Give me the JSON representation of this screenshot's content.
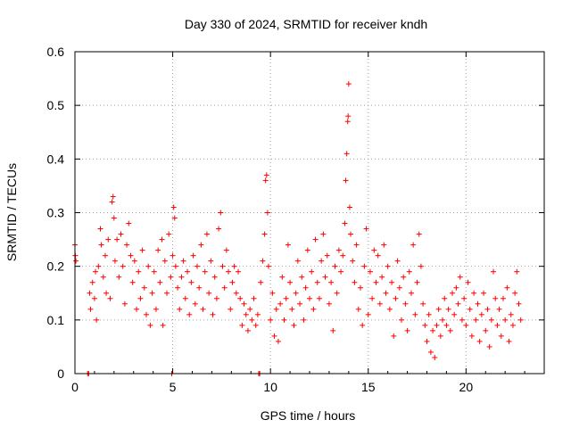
{
  "chart_data": {
    "type": "scatter",
    "title": "Day 330 of 2024, SRMTID for receiver kndh",
    "xlabel": "GPS time / hours",
    "ylabel": "SRMTID / TECUs",
    "xlim": [
      0,
      24
    ],
    "ylim": [
      0,
      0.6
    ],
    "grid": true,
    "marker": "+",
    "color": "#ff0000",
    "x_ticks": [
      {
        "v": 0,
        "label": "0"
      },
      {
        "v": 5,
        "label": "5"
      },
      {
        "v": 10,
        "label": "10"
      },
      {
        "v": 15,
        "label": "15"
      },
      {
        "v": 20,
        "label": "20"
      }
    ],
    "y_ticks": [
      {
        "v": 0,
        "label": "0"
      },
      {
        "v": 0.1,
        "label": "0.1"
      },
      {
        "v": 0.2,
        "label": "0.2"
      },
      {
        "v": 0.3,
        "label": "0.3"
      },
      {
        "v": 0.4,
        "label": "0.4"
      },
      {
        "v": 0.5,
        "label": "0.5"
      },
      {
        "v": 0.6,
        "label": "0.6"
      }
    ],
    "series": [
      {
        "name": "SRMTID",
        "points": [
          [
            0.0,
            0.24
          ],
          [
            0.02,
            0.22
          ],
          [
            0.05,
            0.21
          ],
          [
            0.65,
            0.0
          ],
          [
            0.7,
            0.0
          ],
          [
            0.75,
            0.15
          ],
          [
            0.8,
            0.12
          ],
          [
            0.9,
            0.17
          ],
          [
            1.0,
            0.14
          ],
          [
            1.05,
            0.19
          ],
          [
            1.1,
            0.1
          ],
          [
            1.2,
            0.2
          ],
          [
            1.3,
            0.27
          ],
          [
            1.35,
            0.24
          ],
          [
            1.45,
            0.18
          ],
          [
            1.55,
            0.22
          ],
          [
            1.6,
            0.15
          ],
          [
            1.7,
            0.25
          ],
          [
            1.8,
            0.14
          ],
          [
            1.9,
            0.32
          ],
          [
            1.95,
            0.33
          ],
          [
            2.0,
            0.29
          ],
          [
            2.05,
            0.21
          ],
          [
            2.15,
            0.25
          ],
          [
            2.25,
            0.18
          ],
          [
            2.35,
            0.26
          ],
          [
            2.45,
            0.2
          ],
          [
            2.55,
            0.13
          ],
          [
            2.65,
            0.24
          ],
          [
            2.75,
            0.28
          ],
          [
            2.85,
            0.22
          ],
          [
            2.95,
            0.17
          ],
          [
            3.05,
            0.21
          ],
          [
            3.15,
            0.12
          ],
          [
            3.25,
            0.19
          ],
          [
            3.35,
            0.14
          ],
          [
            3.45,
            0.23
          ],
          [
            3.55,
            0.16
          ],
          [
            3.65,
            0.11
          ],
          [
            3.75,
            0.2
          ],
          [
            3.85,
            0.09
          ],
          [
            3.95,
            0.15
          ],
          [
            4.05,
            0.19
          ],
          [
            4.15,
            0.12
          ],
          [
            4.25,
            0.23
          ],
          [
            4.35,
            0.17
          ],
          [
            4.45,
            0.25
          ],
          [
            4.5,
            0.09
          ],
          [
            4.6,
            0.21
          ],
          [
            4.7,
            0.15
          ],
          [
            4.8,
            0.26
          ],
          [
            4.9,
            0.18
          ],
          [
            4.95,
            0.0
          ],
          [
            5.0,
            0.22
          ],
          [
            5.05,
            0.31
          ],
          [
            5.1,
            0.29
          ],
          [
            5.15,
            0.2
          ],
          [
            5.25,
            0.16
          ],
          [
            5.35,
            0.12
          ],
          [
            5.45,
            0.18
          ],
          [
            5.55,
            0.21
          ],
          [
            5.65,
            0.14
          ],
          [
            5.75,
            0.19
          ],
          [
            5.85,
            0.11
          ],
          [
            5.95,
            0.17
          ],
          [
            6.05,
            0.22
          ],
          [
            6.15,
            0.13
          ],
          [
            6.25,
            0.2
          ],
          [
            6.35,
            0.16
          ],
          [
            6.45,
            0.24
          ],
          [
            6.55,
            0.12
          ],
          [
            6.65,
            0.19
          ],
          [
            6.75,
            0.26
          ],
          [
            6.85,
            0.15
          ],
          [
            6.95,
            0.21
          ],
          [
            7.05,
            0.11
          ],
          [
            7.15,
            0.18
          ],
          [
            7.25,
            0.14
          ],
          [
            7.35,
            0.27
          ],
          [
            7.45,
            0.3
          ],
          [
            7.55,
            0.2
          ],
          [
            7.65,
            0.16
          ],
          [
            7.75,
            0.23
          ],
          [
            7.85,
            0.19
          ],
          [
            7.95,
            0.12
          ],
          [
            8.05,
            0.17
          ],
          [
            8.15,
            0.2
          ],
          [
            8.25,
            0.15
          ],
          [
            8.35,
            0.19
          ],
          [
            8.45,
            0.14
          ],
          [
            8.55,
            0.09
          ],
          [
            8.65,
            0.13
          ],
          [
            8.75,
            0.11
          ],
          [
            8.85,
            0.08
          ],
          [
            8.95,
            0.12
          ],
          [
            9.05,
            0.1
          ],
          [
            9.15,
            0.14
          ],
          [
            9.25,
            0.09
          ],
          [
            9.35,
            0.11
          ],
          [
            9.4,
            0.0
          ],
          [
            9.45,
            0.0
          ],
          [
            9.5,
            0.17
          ],
          [
            9.6,
            0.21
          ],
          [
            9.7,
            0.26
          ],
          [
            9.75,
            0.36
          ],
          [
            9.8,
            0.37
          ],
          [
            9.85,
            0.3
          ],
          [
            9.9,
            0.2
          ],
          [
            10.0,
            0.1
          ],
          [
            10.1,
            0.15
          ],
          [
            10.2,
            0.07
          ],
          [
            10.3,
            0.12
          ],
          [
            10.4,
            0.06
          ],
          [
            10.5,
            0.13
          ],
          [
            10.6,
            0.18
          ],
          [
            10.7,
            0.1
          ],
          [
            10.8,
            0.14
          ],
          [
            10.9,
            0.24
          ],
          [
            11.0,
            0.17
          ],
          [
            11.1,
            0.12
          ],
          [
            11.2,
            0.09
          ],
          [
            11.3,
            0.15
          ],
          [
            11.4,
            0.21
          ],
          [
            11.5,
            0.13
          ],
          [
            11.6,
            0.18
          ],
          [
            11.7,
            0.1
          ],
          [
            11.8,
            0.16
          ],
          [
            11.9,
            0.23
          ],
          [
            12.0,
            0.14
          ],
          [
            12.1,
            0.19
          ],
          [
            12.2,
            0.12
          ],
          [
            12.3,
            0.25
          ],
          [
            12.4,
            0.17
          ],
          [
            12.5,
            0.14
          ],
          [
            12.6,
            0.21
          ],
          [
            12.7,
            0.26
          ],
          [
            12.8,
            0.18
          ],
          [
            12.9,
            0.22
          ],
          [
            13.0,
            0.13
          ],
          [
            13.1,
            0.17
          ],
          [
            13.2,
            0.08
          ],
          [
            13.3,
            0.2
          ],
          [
            13.4,
            0.15
          ],
          [
            13.5,
            0.23
          ],
          [
            13.6,
            0.19
          ],
          [
            13.7,
            0.22
          ],
          [
            13.8,
            0.28
          ],
          [
            13.85,
            0.36
          ],
          [
            13.9,
            0.41
          ],
          [
            13.95,
            0.47
          ],
          [
            13.97,
            0.48
          ],
          [
            14.0,
            0.54
          ],
          [
            14.05,
            0.31
          ],
          [
            14.1,
            0.26
          ],
          [
            14.2,
            0.21
          ],
          [
            14.3,
            0.17
          ],
          [
            14.4,
            0.24
          ],
          [
            14.5,
            0.12
          ],
          [
            14.6,
            0.16
          ],
          [
            14.7,
            0.09
          ],
          [
            14.8,
            0.2
          ],
          [
            14.9,
            0.27
          ],
          [
            15.0,
            0.11
          ],
          [
            15.1,
            0.19
          ],
          [
            15.2,
            0.14
          ],
          [
            15.3,
            0.23
          ],
          [
            15.4,
            0.17
          ],
          [
            15.5,
            0.22
          ],
          [
            15.6,
            0.13
          ],
          [
            15.7,
            0.18
          ],
          [
            15.8,
            0.24
          ],
          [
            15.9,
            0.15
          ],
          [
            16.0,
            0.2
          ],
          [
            16.1,
            0.12
          ],
          [
            16.2,
            0.17
          ],
          [
            16.3,
            0.07
          ],
          [
            16.4,
            0.14
          ],
          [
            16.5,
            0.21
          ],
          [
            16.6,
            0.16
          ],
          [
            16.7,
            0.1
          ],
          [
            16.8,
            0.18
          ],
          [
            16.9,
            0.13
          ],
          [
            17.0,
            0.08
          ],
          [
            17.1,
            0.19
          ],
          [
            17.2,
            0.15
          ],
          [
            17.3,
            0.24
          ],
          [
            17.4,
            0.11
          ],
          [
            17.5,
            0.17
          ],
          [
            17.6,
            0.26
          ],
          [
            17.7,
            0.2
          ],
          [
            17.8,
            0.13
          ],
          [
            17.9,
            0.09
          ],
          [
            18.0,
            0.06
          ],
          [
            18.1,
            0.11
          ],
          [
            18.2,
            0.04
          ],
          [
            18.3,
            0.08
          ],
          [
            18.4,
            0.03
          ],
          [
            18.5,
            0.09
          ],
          [
            18.6,
            0.12
          ],
          [
            18.7,
            0.07
          ],
          [
            18.8,
            0.1
          ],
          [
            18.9,
            0.14
          ],
          [
            19.0,
            0.09
          ],
          [
            19.1,
            0.12
          ],
          [
            19.2,
            0.08
          ],
          [
            19.3,
            0.15
          ],
          [
            19.4,
            0.11
          ],
          [
            19.5,
            0.16
          ],
          [
            19.6,
            0.13
          ],
          [
            19.7,
            0.18
          ],
          [
            19.8,
            0.1
          ],
          [
            19.9,
            0.14
          ],
          [
            20.0,
            0.09
          ],
          [
            20.1,
            0.17
          ],
          [
            20.2,
            0.12
          ],
          [
            20.3,
            0.07
          ],
          [
            20.4,
            0.15
          ],
          [
            20.5,
            0.1
          ],
          [
            20.6,
            0.13
          ],
          [
            20.7,
            0.06
          ],
          [
            20.8,
            0.11
          ],
          [
            20.9,
            0.15
          ],
          [
            21.0,
            0.08
          ],
          [
            21.1,
            0.12
          ],
          [
            21.2,
            0.05
          ],
          [
            21.3,
            0.1
          ],
          [
            21.4,
            0.19
          ],
          [
            21.5,
            0.14
          ],
          [
            21.6,
            0.09
          ],
          [
            21.7,
            0.12
          ],
          [
            21.8,
            0.07
          ],
          [
            21.9,
            0.14
          ],
          [
            22.0,
            0.1
          ],
          [
            22.1,
            0.16
          ],
          [
            22.2,
            0.06
          ],
          [
            22.3,
            0.11
          ],
          [
            22.4,
            0.09
          ],
          [
            22.5,
            0.15
          ],
          [
            22.6,
            0.19
          ],
          [
            22.7,
            0.13
          ],
          [
            22.8,
            0.1
          ]
        ]
      }
    ]
  }
}
